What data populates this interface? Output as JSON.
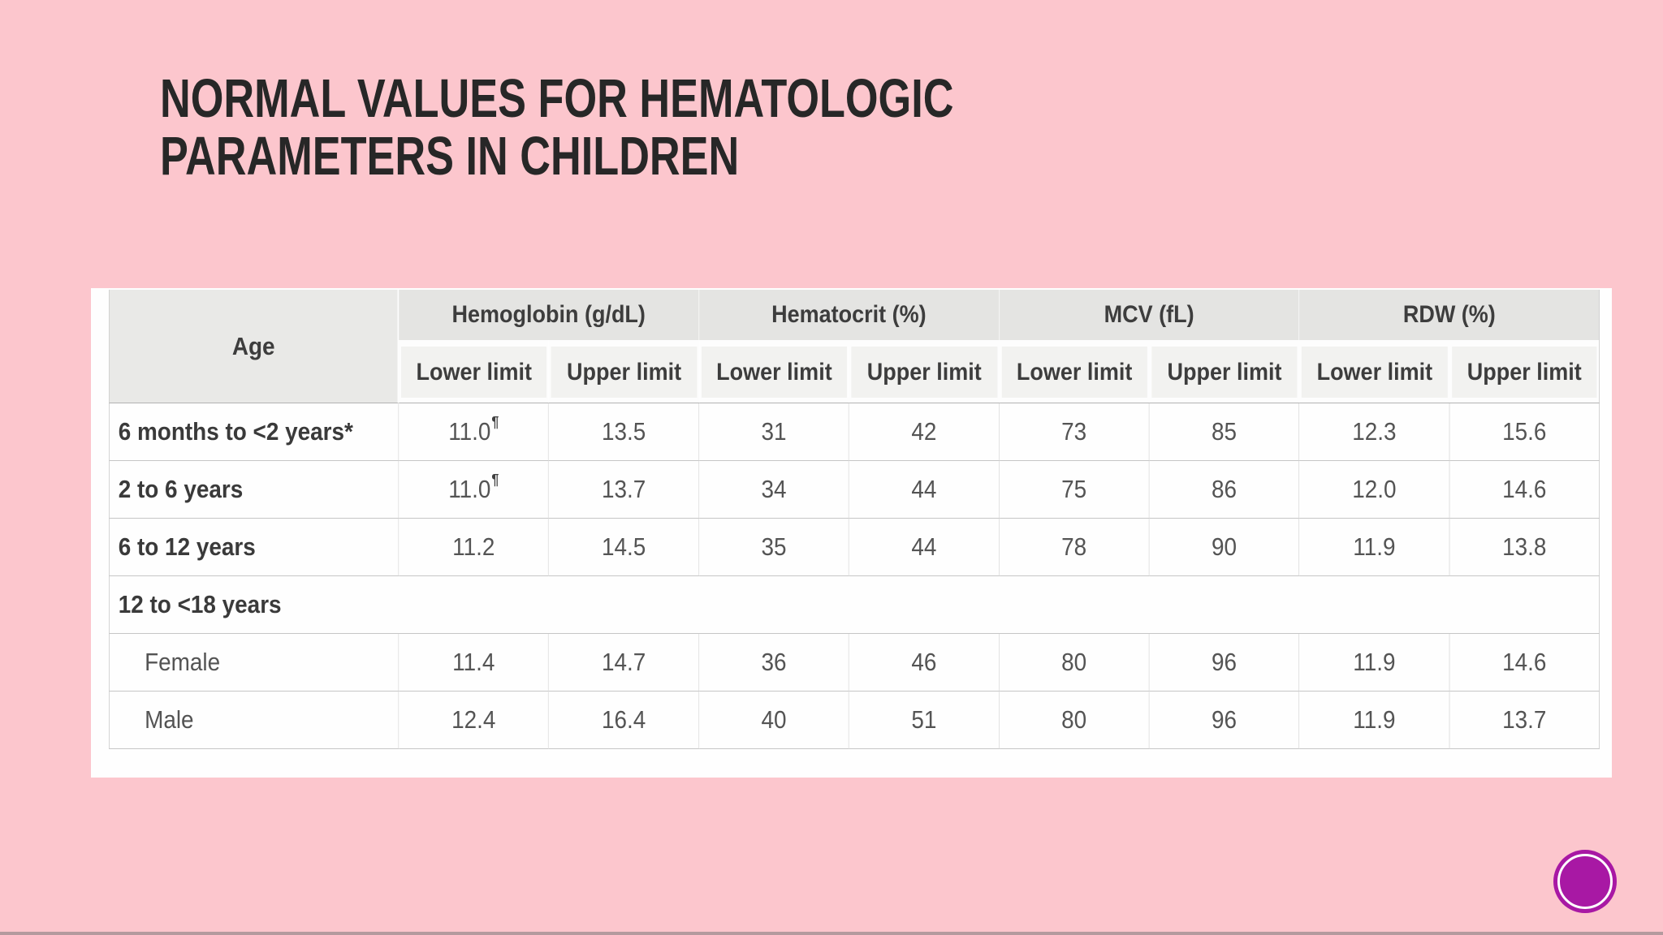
{
  "slide": {
    "title": {
      "line1": "NORMAL VALUES FOR HEMATOLOGIC",
      "line2": "PARAMETERS IN CHILDREN"
    },
    "colors": {
      "background": "#fcc6cd",
      "title_text": "#272727",
      "accent_circle": "#a818a4"
    }
  },
  "table": {
    "corner_header": "Age",
    "column_groups": [
      {
        "label": "Hemoglobin (g/dL)",
        "sub": [
          "Lower limit",
          "Upper limit"
        ]
      },
      {
        "label": "Hematocrit (%)",
        "sub": [
          "Lower limit",
          "Upper limit"
        ]
      },
      {
        "label": "MCV (fL)",
        "sub": [
          "Lower limit",
          "Upper limit"
        ]
      },
      {
        "label": "RDW (%)",
        "sub": [
          "Lower limit",
          "Upper limit"
        ]
      }
    ],
    "rows": [
      {
        "age": "6 months to <2 years*",
        "footnote_sup": "¶",
        "values": [
          "11.0",
          "13.5",
          "31",
          "42",
          "73",
          "85",
          "12.3",
          "15.6"
        ]
      },
      {
        "age": "2 to 6 years",
        "footnote_sup": "¶",
        "values": [
          "11.0",
          "13.7",
          "34",
          "44",
          "75",
          "86",
          "12.0",
          "14.6"
        ]
      },
      {
        "age": "6 to 12 years",
        "values": [
          "11.2",
          "14.5",
          "35",
          "44",
          "78",
          "90",
          "11.9",
          "13.8"
        ]
      },
      {
        "age": "12 to <18 years",
        "section": true
      },
      {
        "age": "Female",
        "indent": true,
        "values": [
          "11.4",
          "14.7",
          "36",
          "46",
          "80",
          "96",
          "11.9",
          "14.6"
        ]
      },
      {
        "age": "Male",
        "indent": true,
        "values": [
          "12.4",
          "16.4",
          "40",
          "51",
          "80",
          "96",
          "11.9",
          "13.7"
        ]
      }
    ]
  }
}
